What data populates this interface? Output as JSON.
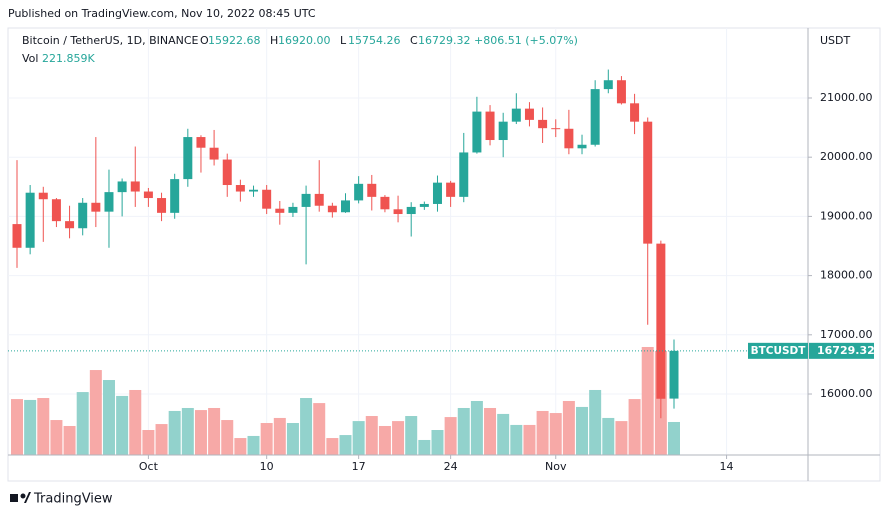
{
  "published": "Published on TradingView.com, Nov 10, 2022 08:45 UTC",
  "footer": "TradingView",
  "chart_data": {
    "type": "candlestick",
    "title": "Bitcoin / TetherUS, 1D, BINANCE",
    "ohlc_legend": [
      {
        "key": "O",
        "value": "15922.68"
      },
      {
        "key": "H",
        "value": "16920.00"
      },
      {
        "key": "L",
        "value": "15754.26"
      },
      {
        "key": "C",
        "value": "16729.32"
      }
    ],
    "change": "+806.51 (+5.07%)",
    "volume_label": "Vol",
    "volume_value_label": "221.859K",
    "currency": "USDT",
    "symbol": "BTCUSDT",
    "categories": [
      null,
      null,
      null,
      null,
      null,
      null,
      null,
      null,
      null,
      null,
      "Oct",
      null,
      null,
      null,
      null,
      null,
      null,
      null,
      null,
      "10",
      null,
      null,
      null,
      null,
      null,
      null,
      "17",
      null,
      null,
      null,
      null,
      null,
      null,
      "24",
      null,
      null,
      null,
      null,
      null,
      null,
      null,
      "Nov",
      null,
      null,
      null,
      null,
      null,
      null,
      null,
      null,
      null,
      null,
      null,
      null,
      "14"
    ],
    "open": [
      18870,
      18470,
      19400,
      19290,
      18920,
      18800,
      19230,
      19080,
      19410,
      19590,
      19420,
      19310,
      19060,
      19630,
      20340,
      20160,
      19960,
      19530,
      19420,
      19450,
      19130,
      19060,
      19160,
      19380,
      19180,
      19070,
      19270,
      19550,
      19330,
      19120,
      19040,
      19160,
      19210,
      19570,
      19330,
      20080,
      20770,
      20290,
      20600,
      20820,
      20630,
      20490,
      20480,
      20150,
      20210,
      21150,
      21300,
      20910,
      20600,
      18540,
      15922.68,
      null,
      null,
      null,
      null
    ],
    "high": [
      19950,
      19530,
      19500,
      19310,
      19180,
      19310,
      20340,
      19790,
      19640,
      20180,
      19480,
      19400,
      19720,
      20480,
      20370,
      20460,
      20060,
      19620,
      19520,
      19530,
      19260,
      19230,
      19520,
      19950,
      19230,
      19390,
      19680,
      19700,
      19360,
      19350,
      19240,
      19250,
      19690,
      19600,
      20410,
      21020,
      20880,
      20750,
      21080,
      20930,
      20840,
      20640,
      20800,
      20380,
      21300,
      21480,
      21370,
      21070,
      20670,
      18590,
      16920,
      null,
      null,
      null,
      null
    ],
    "low": [
      18130,
      18360,
      18570,
      18820,
      18630,
      18680,
      18820,
      18470,
      19000,
      19160,
      19160,
      18920,
      18960,
      19500,
      19740,
      19860,
      19330,
      19250,
      19330,
      19040,
      18860,
      18990,
      18190,
      19080,
      18980,
      19060,
      19220,
      19100,
      19070,
      18900,
      18660,
      19110,
      19080,
      19160,
      19240,
      20060,
      20200,
      20000,
      20560,
      20520,
      20240,
      20340,
      20050,
      20050,
      20180,
      21080,
      20890,
      20390,
      17170,
      15590,
      15754.26,
      null,
      null,
      null,
      null
    ],
    "close": [
      18470,
      19400,
      19290,
      18920,
      18800,
      19230,
      19080,
      19410,
      19590,
      19420,
      19310,
      19060,
      19630,
      20340,
      20160,
      19960,
      19530,
      19420,
      19450,
      19130,
      19060,
      19160,
      19380,
      19180,
      19070,
      19270,
      19550,
      19330,
      19120,
      19040,
      19160,
      19210,
      19570,
      19330,
      20080,
      20770,
      20290,
      20600,
      20820,
      20630,
      20490,
      20480,
      20150,
      20210,
      21150,
      21300,
      20910,
      20600,
      18540,
      15920,
      16729.32,
      null,
      null,
      null,
      null
    ],
    "volume": [
      376000,
      370000,
      383000,
      235000,
      195000,
      423000,
      571000,
      504000,
      397000,
      437000,
      168000,
      208000,
      296000,
      316000,
      302000,
      316000,
      235000,
      114000,
      128000,
      215000,
      249000,
      215000,
      383000,
      349000,
      114000,
      134000,
      228000,
      262000,
      195000,
      228000,
      262000,
      101000,
      168000,
      255000,
      316000,
      363000,
      316000,
      276000,
      202000,
      202000,
      296000,
      282000,
      363000,
      323000,
      437000,
      249000,
      228000,
      376000,
      726000,
      699000,
      221859,
      null,
      null,
      null,
      null
    ],
    "ylim": [
      14970,
      22182
    ],
    "yticks": [
      {
        "value": 16000,
        "label": "16000.00"
      },
      {
        "value": 17000,
        "label": "17000.00"
      },
      {
        "value": 18000,
        "label": "18000.00"
      },
      {
        "value": 19000,
        "label": "19000.00"
      },
      {
        "value": 20000,
        "label": "20000.00"
      },
      {
        "value": 21000,
        "label": "21000.00"
      }
    ],
    "y2lim": [
      0,
      2870000
    ],
    "grid": true,
    "up_color": "#26a69a",
    "down_color": "#ef5350",
    "volume_up_color": "#92d2cc",
    "volume_down_color": "#f7a9a7"
  }
}
